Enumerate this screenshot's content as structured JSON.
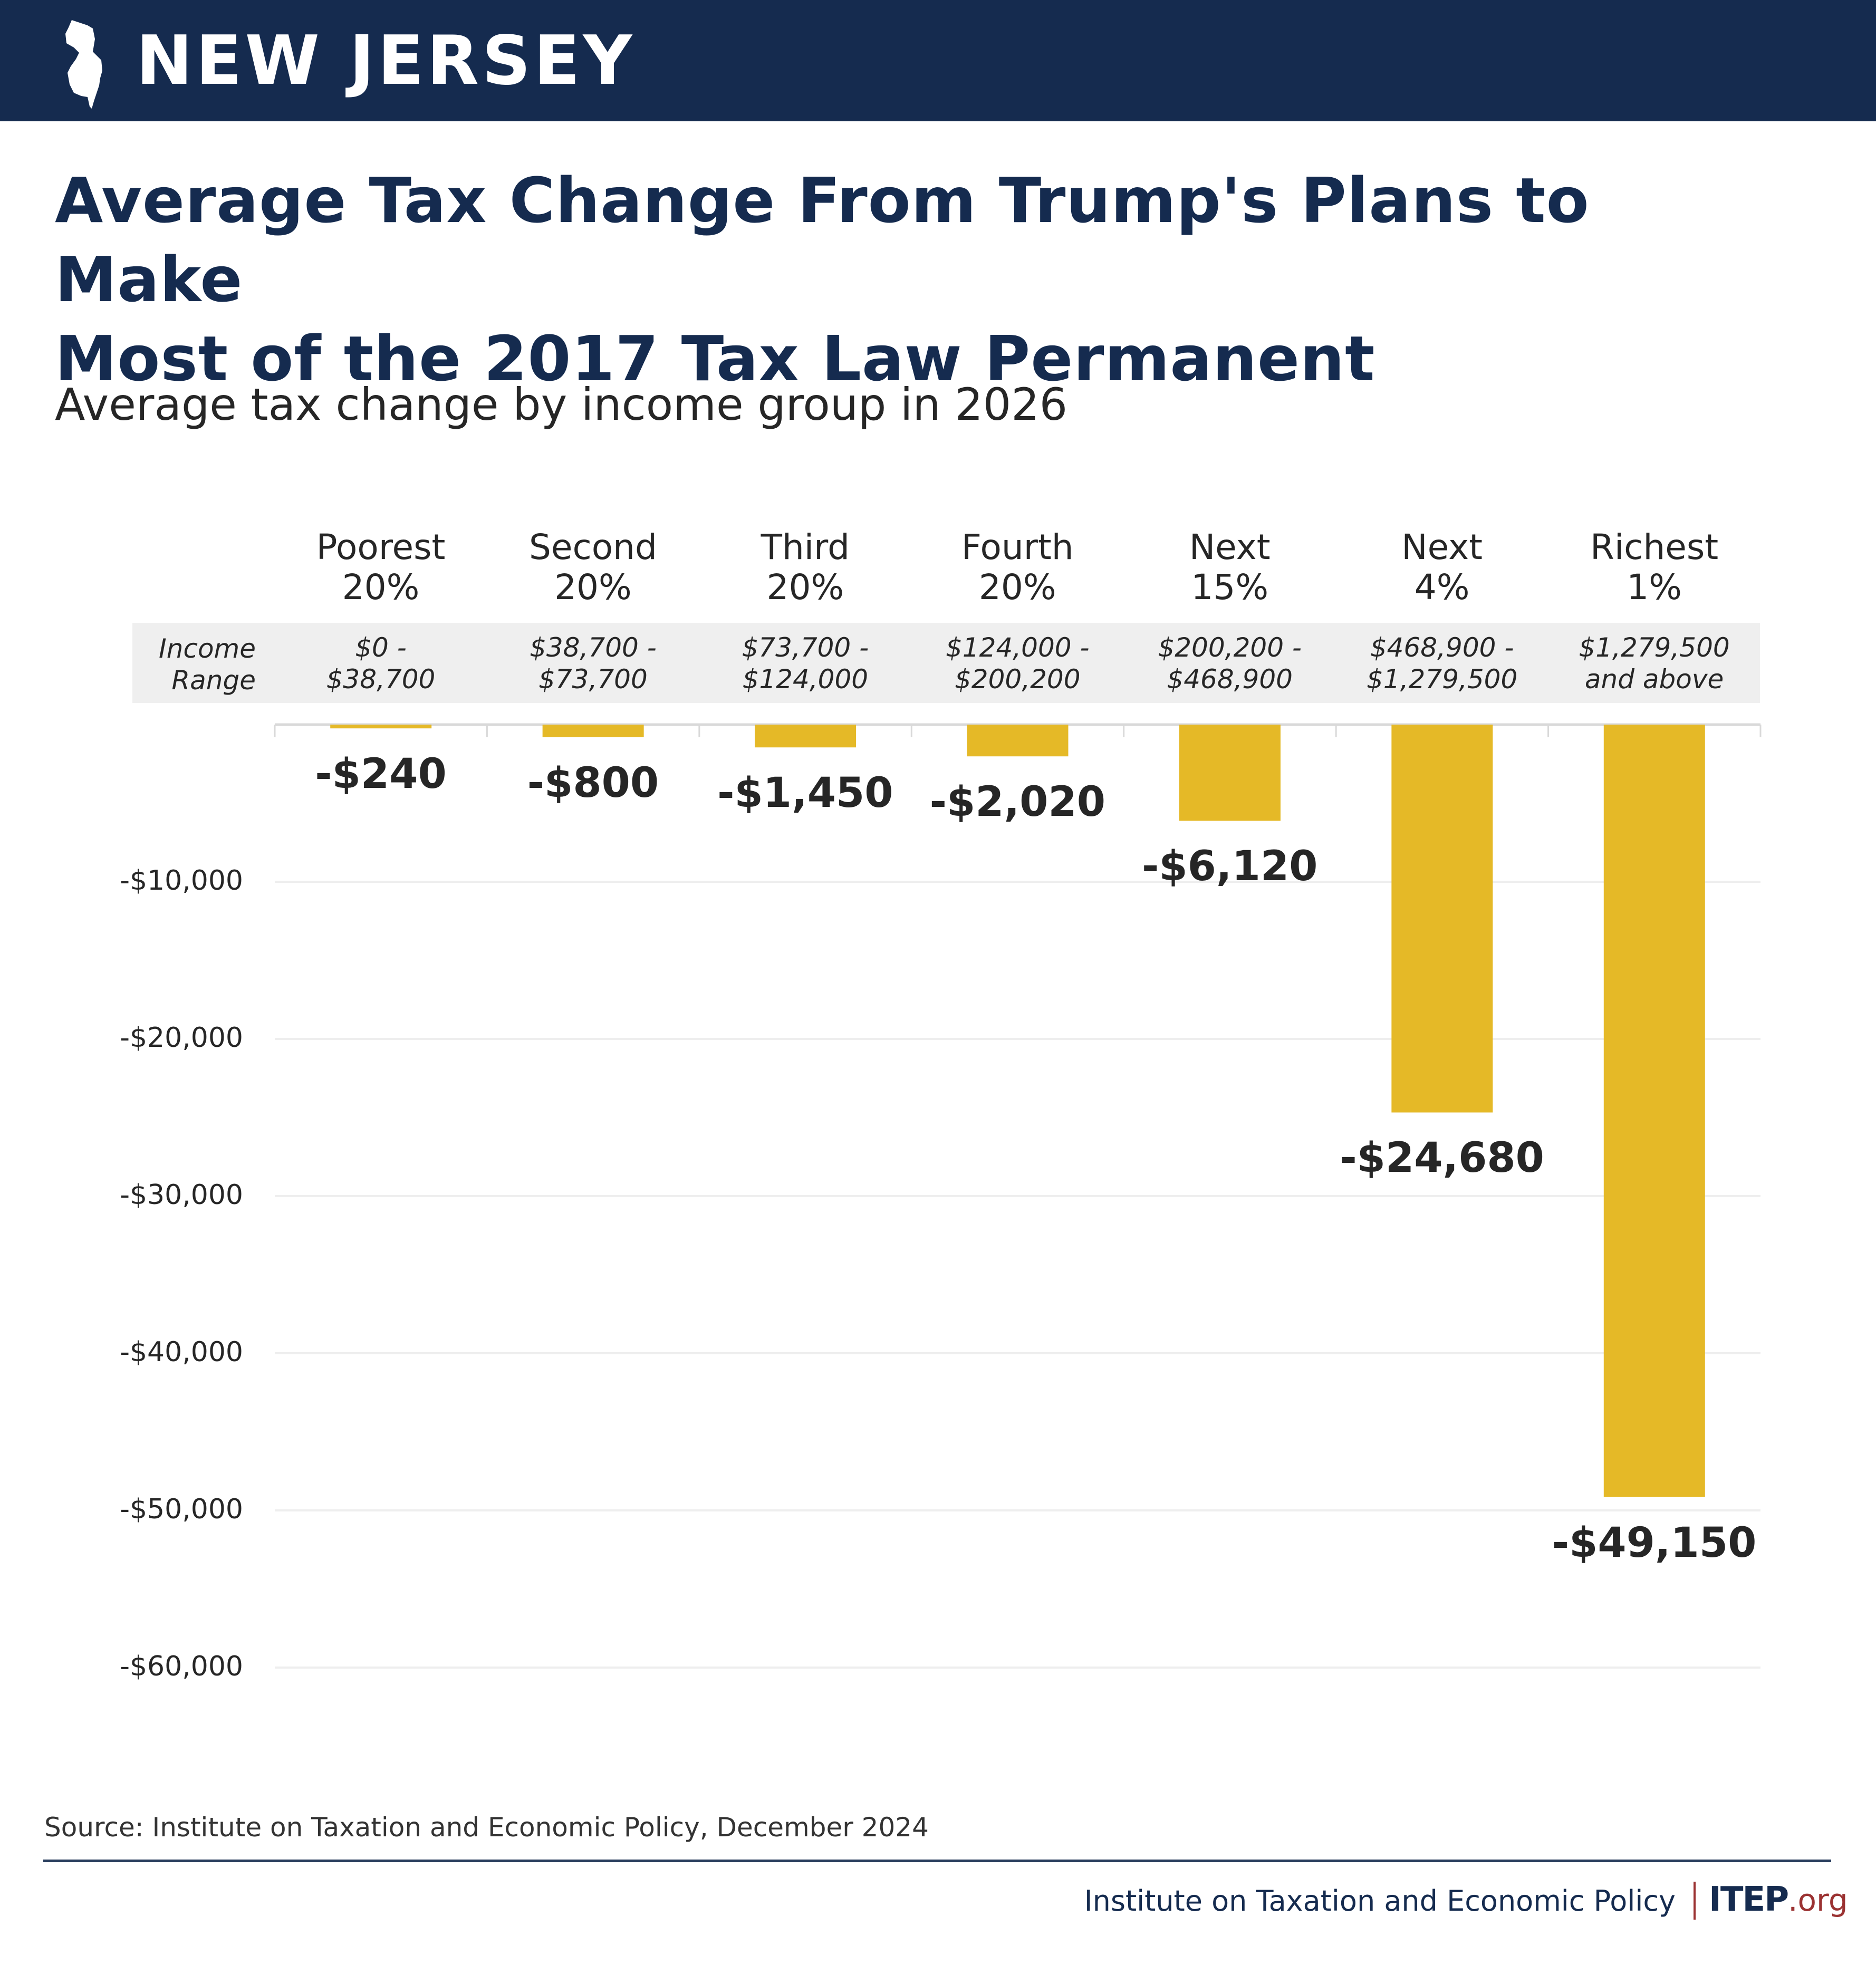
{
  "header": {
    "state_name": "NEW JERSEY",
    "state_icon": "new-jersey-map-icon",
    "background_color": "#152B4F"
  },
  "title_lines": [
    "Average Tax Change From Trump's Plans to Make",
    "Most of the 2017 Tax Law Permanent"
  ],
  "subtitle": "Average tax change by income group in 2026",
  "income_range_label": [
    "Income",
    "Range"
  ],
  "colors": {
    "bar": "#E5B927",
    "title": "#152B4F",
    "band": "#EFEFEF",
    "brand_red": "#9B3232"
  },
  "chart_data": {
    "type": "bar",
    "title": "Average tax change by income group in 2026",
    "xlabel": "",
    "ylabel": "",
    "categories": [
      "Poorest 20%",
      "Second 20%",
      "Third 20%",
      "Fourth 20%",
      "Next 15%",
      "Next 4%",
      "Richest 1%"
    ],
    "category_lines": [
      [
        "Poorest",
        "20%"
      ],
      [
        "Second",
        "20%"
      ],
      [
        "Third",
        "20%"
      ],
      [
        "Fourth",
        "20%"
      ],
      [
        "Next",
        "15%"
      ],
      [
        "Next",
        "4%"
      ],
      [
        "Richest",
        "1%"
      ]
    ],
    "income_ranges": [
      [
        "$0 -",
        "$38,700"
      ],
      [
        "$38,700 -",
        "$73,700"
      ],
      [
        "$73,700 -",
        "$124,000"
      ],
      [
        "$124,000 -",
        "$200,200"
      ],
      [
        "$200,200 -",
        "$468,900"
      ],
      [
        "$468,900 -",
        "$1,279,500"
      ],
      [
        "$1,279,500",
        "and above"
      ]
    ],
    "values": [
      -240,
      -800,
      -1450,
      -2020,
      -6120,
      -24680,
      -49150
    ],
    "value_labels": [
      "-$240",
      "-$800",
      "-$1,450",
      "-$2,020",
      "-$6,120",
      "-$24,680",
      "-$49,150"
    ],
    "ylim": [
      -60000,
      0
    ],
    "yticks": [
      -10000,
      -20000,
      -30000,
      -40000,
      -50000,
      -60000
    ],
    "ytick_labels": [
      "-$10,000",
      "-$20,000",
      "-$30,000",
      "-$40,000",
      "-$50,000",
      "-$60,000"
    ],
    "grid": true,
    "legend": "none"
  },
  "footer": {
    "source": "Source: Institute on Taxation and Economic Policy, December 2024",
    "org_name": "Institute on Taxation and Economic Policy",
    "logo_main": "ITEP",
    "logo_suffix": ".org"
  }
}
